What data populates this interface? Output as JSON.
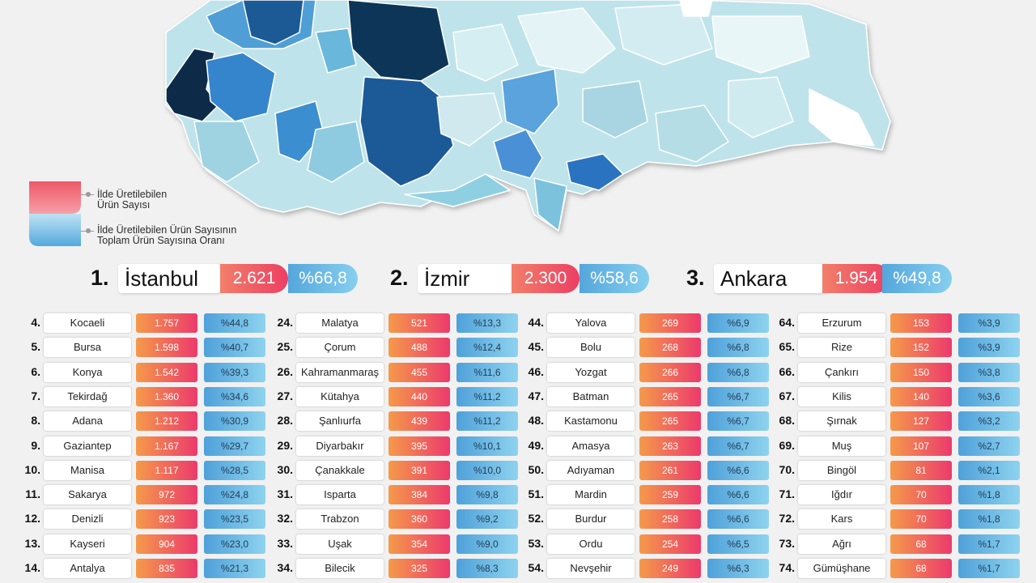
{
  "legend": {
    "count_line1": "İlde Üretilebilen",
    "count_line2": "Ürün Sayısı",
    "ratio_line1": "İlde Üretilebilen Ürün Sayısının",
    "ratio_line2": "Toplam Ürün Sayısına Oranı"
  },
  "top3": [
    {
      "rank": "1.",
      "name": "İstanbul",
      "count": "2.621",
      "ratio": "%66,8"
    },
    {
      "rank": "2.",
      "name": "İzmir",
      "count": "2.300",
      "ratio": "%58,6"
    },
    {
      "rank": "3.",
      "name": "Ankara",
      "count": "1.954",
      "ratio": "%49,8"
    }
  ],
  "columns": [
    [
      {
        "rank": "4.",
        "name": "Kocaeli",
        "count": "1.757",
        "ratio": "%44,8"
      },
      {
        "rank": "5.",
        "name": "Bursa",
        "count": "1.598",
        "ratio": "%40,7"
      },
      {
        "rank": "6.",
        "name": "Konya",
        "count": "1.542",
        "ratio": "%39,3"
      },
      {
        "rank": "7.",
        "name": "Tekirdağ",
        "count": "1.360",
        "ratio": "%34,6"
      },
      {
        "rank": "8.",
        "name": "Adana",
        "count": "1.212",
        "ratio": "%30,9"
      },
      {
        "rank": "9.",
        "name": "Gaziantep",
        "count": "1.167",
        "ratio": "%29,7"
      },
      {
        "rank": "10.",
        "name": "Manisa",
        "count": "1.117",
        "ratio": "%28,5"
      },
      {
        "rank": "11.",
        "name": "Sakarya",
        "count": "972",
        "ratio": "%24,8"
      },
      {
        "rank": "12.",
        "name": "Denizli",
        "count": "923",
        "ratio": "%23,5"
      },
      {
        "rank": "13.",
        "name": "Kayseri",
        "count": "904",
        "ratio": "%23,0"
      },
      {
        "rank": "14.",
        "name": "Antalya",
        "count": "835",
        "ratio": "%21,3"
      }
    ],
    [
      {
        "rank": "24.",
        "name": "Malatya",
        "count": "521",
        "ratio": "%13,3"
      },
      {
        "rank": "25.",
        "name": "Çorum",
        "count": "488",
        "ratio": "%12,4"
      },
      {
        "rank": "26.",
        "name": "Kahramanmaraş",
        "count": "455",
        "ratio": "%11,6"
      },
      {
        "rank": "27.",
        "name": "Kütahya",
        "count": "440",
        "ratio": "%11,2"
      },
      {
        "rank": "28.",
        "name": "Şanlıurfa",
        "count": "439",
        "ratio": "%11,2"
      },
      {
        "rank": "29.",
        "name": "Diyarbakır",
        "count": "395",
        "ratio": "%10,1"
      },
      {
        "rank": "30.",
        "name": "Çanakkale",
        "count": "391",
        "ratio": "%10,0"
      },
      {
        "rank": "31.",
        "name": "Isparta",
        "count": "384",
        "ratio": "%9,8"
      },
      {
        "rank": "32.",
        "name": "Trabzon",
        "count": "360",
        "ratio": "%9,2"
      },
      {
        "rank": "33.",
        "name": "Uşak",
        "count": "354",
        "ratio": "%9,0"
      },
      {
        "rank": "34.",
        "name": "Bilecik",
        "count": "325",
        "ratio": "%8,3"
      }
    ],
    [
      {
        "rank": "44.",
        "name": "Yalova",
        "count": "269",
        "ratio": "%6,9"
      },
      {
        "rank": "45.",
        "name": "Bolu",
        "count": "268",
        "ratio": "%6,8"
      },
      {
        "rank": "46.",
        "name": "Yozgat",
        "count": "266",
        "ratio": "%6,8"
      },
      {
        "rank": "47.",
        "name": "Batman",
        "count": "265",
        "ratio": "%6,7"
      },
      {
        "rank": "48.",
        "name": "Kastamonu",
        "count": "265",
        "ratio": "%6,7"
      },
      {
        "rank": "49.",
        "name": "Amasya",
        "count": "263",
        "ratio": "%6,7"
      },
      {
        "rank": "50.",
        "name": "Adıyaman",
        "count": "261",
        "ratio": "%6,6"
      },
      {
        "rank": "51.",
        "name": "Mardin",
        "count": "259",
        "ratio": "%6,6"
      },
      {
        "rank": "52.",
        "name": "Burdur",
        "count": "258",
        "ratio": "%6,6"
      },
      {
        "rank": "53.",
        "name": "Ordu",
        "count": "254",
        "ratio": "%6,5"
      },
      {
        "rank": "54.",
        "name": "Nevşehir",
        "count": "249",
        "ratio": "%6,3"
      }
    ],
    [
      {
        "rank": "64.",
        "name": "Erzurum",
        "count": "153",
        "ratio": "%3,9"
      },
      {
        "rank": "65.",
        "name": "Rize",
        "count": "152",
        "ratio": "%3,9"
      },
      {
        "rank": "66.",
        "name": "Çankırı",
        "count": "150",
        "ratio": "%3,8"
      },
      {
        "rank": "67.",
        "name": "Kilis",
        "count": "140",
        "ratio": "%3,6"
      },
      {
        "rank": "68.",
        "name": "Şırnak",
        "count": "127",
        "ratio": "%3,2"
      },
      {
        "rank": "69.",
        "name": "Muş",
        "count": "107",
        "ratio": "%2,7"
      },
      {
        "rank": "70.",
        "name": "Bingöl",
        "count": "81",
        "ratio": "%2,1"
      },
      {
        "rank": "71.",
        "name": "Iğdır",
        "count": "70",
        "ratio": "%1,8"
      },
      {
        "rank": "72.",
        "name": "Kars",
        "count": "70",
        "ratio": "%1,8"
      },
      {
        "rank": "73.",
        "name": "Ağrı",
        "count": "68",
        "ratio": "%1,7"
      },
      {
        "rank": "74.",
        "name": "Gümüşhane",
        "count": "68",
        "ratio": "%1,7"
      }
    ]
  ],
  "colors": {
    "count_gradient": [
      "#f59a4a",
      "#ec3a6c"
    ],
    "ratio_gradient": [
      "#4fa1da",
      "#8ed3ef"
    ],
    "map_darkest": "#0d2a4a",
    "map_lightest": "#eaf6f8"
  }
}
